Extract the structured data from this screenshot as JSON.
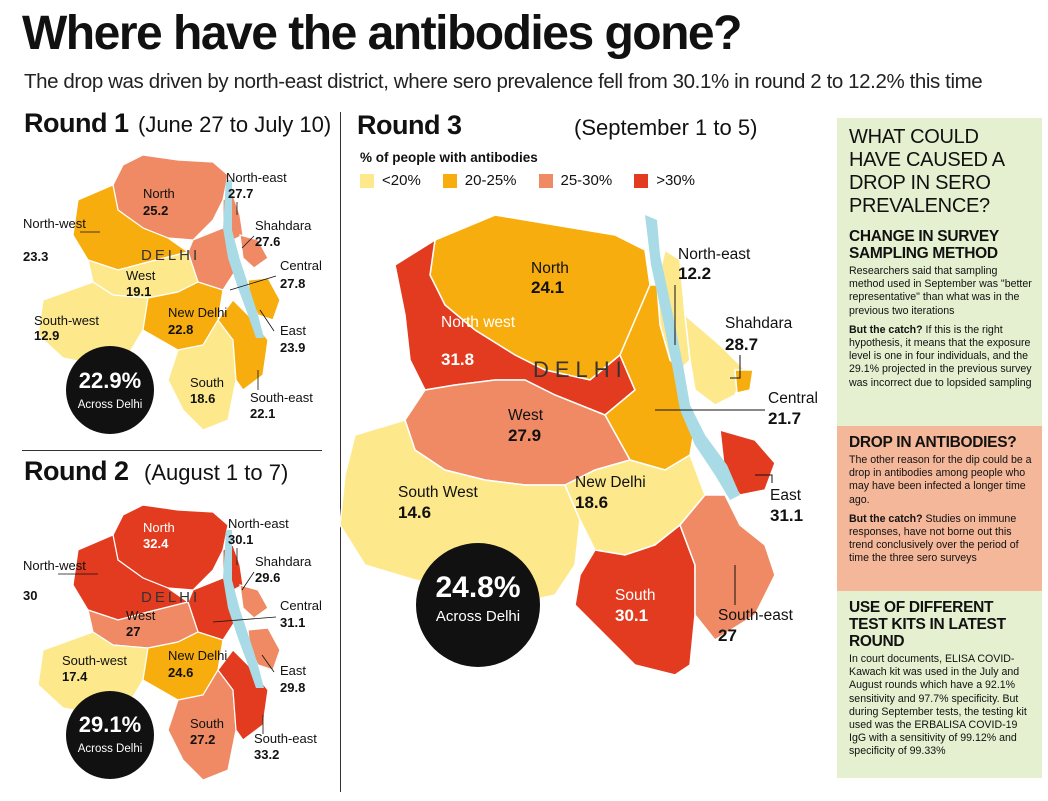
{
  "title": "Where have the antibodies gone?",
  "subtitle": "The drop was driven by north-east district, where sero prevalence fell from 30.1% in round 2 to 12.2% this time",
  "colors": {
    "lt20": "#fde98c",
    "c20_25": "#f7ad0d",
    "c25_30": "#ef8a65",
    "gt30": "#e23b1f",
    "river": "#a9dbe6"
  },
  "legend": {
    "title": "% of people with antibodies",
    "items": [
      {
        "label": "<20%",
        "color": "#fde98c"
      },
      {
        "label": "20-25%",
        "color": "#f7ad0d"
      },
      {
        "label": "25-30%",
        "color": "#ef8a65"
      },
      {
        "label": ">30%",
        "color": "#e23b1f"
      }
    ]
  },
  "round1": {
    "label": "Round 1",
    "dates": "(June 27 to July 10)",
    "delhi": "DELHI",
    "overall": "22.9%",
    "overall_sub": "Across Delhi",
    "districts": {
      "north": {
        "name": "North",
        "value": "25.2"
      },
      "north_east": {
        "name": "North-east",
        "value": "27.7"
      },
      "shahdara": {
        "name": "Shahdara",
        "value": "27.6"
      },
      "north_west": {
        "name": "North-west",
        "value": "23.3"
      },
      "central": {
        "name": "Central",
        "value": "27.8"
      },
      "west": {
        "name": "West",
        "value": "19.1"
      },
      "south_west": {
        "name": "South-west",
        "value": "12.9"
      },
      "new_delhi": {
        "name": "New Delhi",
        "value": "22.8"
      },
      "east": {
        "name": "East",
        "value": "23.9"
      },
      "south": {
        "name": "South",
        "value": "18.6"
      },
      "south_east": {
        "name": "South-east",
        "value": "22.1"
      }
    }
  },
  "round2": {
    "label": "Round 2",
    "dates": "(August 1 to 7)",
    "delhi": "DELHI",
    "overall": "29.1%",
    "overall_sub": "Across Delhi",
    "districts": {
      "north": {
        "name": "North",
        "value": "32.4"
      },
      "north_east": {
        "name": "North-east",
        "value": "30.1"
      },
      "shahdara": {
        "name": "Shahdara",
        "value": "29.6"
      },
      "north_west": {
        "name": "North-west",
        "value": "30"
      },
      "central": {
        "name": "Central",
        "value": "31.1"
      },
      "west": {
        "name": "West",
        "value": "27"
      },
      "south_west": {
        "name": "South-west",
        "value": "17.4"
      },
      "new_delhi": {
        "name": "New Delhi",
        "value": "24.6"
      },
      "east": {
        "name": "East",
        "value": "29.8"
      },
      "south": {
        "name": "South",
        "value": "27.2"
      },
      "south_east": {
        "name": "South-east",
        "value": "33.2"
      }
    }
  },
  "round3": {
    "label": "Round 3",
    "dates": "(September 1 to 5)",
    "delhi": "DELHI",
    "overall": "24.8%",
    "overall_sub": "Across Delhi",
    "districts": {
      "north": {
        "name": "North",
        "value": "24.1"
      },
      "north_east": {
        "name": "North-east",
        "value": "12.2"
      },
      "shahdara": {
        "name": "Shahdara",
        "value": "28.7"
      },
      "north_west": {
        "name": "North west",
        "value": "31.8"
      },
      "central": {
        "name": "Central",
        "value": "21.7"
      },
      "west": {
        "name": "West",
        "value": "27.9"
      },
      "south_west": {
        "name": "South West",
        "value": "14.6"
      },
      "new_delhi": {
        "name": "New Delhi",
        "value": "18.6"
      },
      "east": {
        "name": "East",
        "value": "31.1"
      },
      "south": {
        "name": "South",
        "value": "30.1"
      },
      "south_east": {
        "name": "South-east",
        "value": "27"
      }
    }
  },
  "sidebar": {
    "question": "WHAT COULD HAVE CAUSED A DROP IN SERO PREVALENCE?",
    "sections": [
      {
        "heading": "CHANGE IN SURVEY SAMPLING METHOD",
        "body": "Researchers said that sampling method used in September was \"better representative\" than what was in the previous two iterations",
        "catch_label": "But the catch?",
        "catch_body": " If this is the right hypothesis, it means that the exposure level is one in four individuals, and the 29.1% projected in the previous survey was incorrect due to lopsided sampling"
      },
      {
        "heading": "DROP IN ANTIBODIES?",
        "body": "The other reason for the dip could be a drop in antibodies among people who may have been infected a longer time ago.",
        "catch_label": "But the catch?",
        "catch_body": " Studies on immune responses, have not borne out this trend conclusively over the period of time the three sero surveys"
      },
      {
        "heading": "USE OF DIFFERENT TEST KITS IN LATEST ROUND",
        "body": "In court documents, ELISA COVID-Kawach kit was used in the July and August rounds which have a 92.1% sensitivity and 97.7% specificity. But during September tests, the testing kit used was the ERBALISA COVID-19 IgG with a sensitivity of 99.12% and specificity of 99.33%"
      }
    ],
    "colors": {
      "green": "#e4f0cf",
      "salmon": "#f4b79a"
    }
  }
}
